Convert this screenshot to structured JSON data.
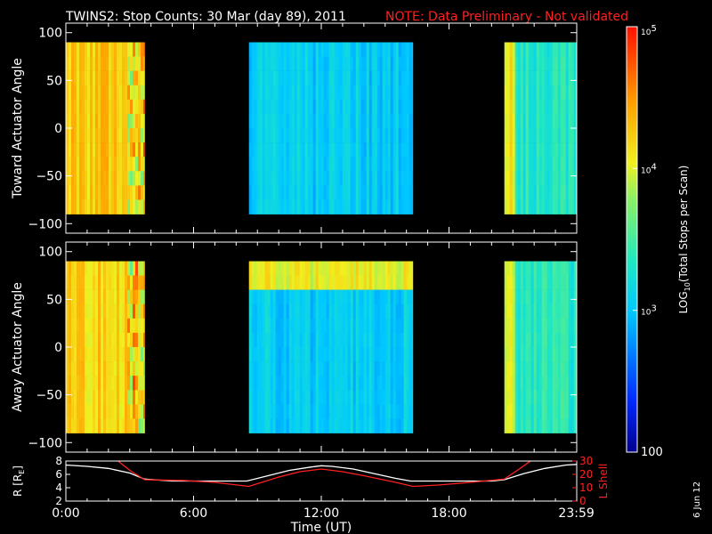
{
  "header": {
    "title": "TWINS2: Stop Counts: 30 Mar (day  89), 2011",
    "note": "NOTE: Data Preliminary - Not validated"
  },
  "footer": {
    "date_stamp": "6 Jun 12"
  },
  "colors": {
    "note": "#ff2020",
    "orbit_r": "#ffffff",
    "orbit_l": "#ff2020",
    "frame": "#ffffff",
    "background": "#000000"
  },
  "chart_data": [
    {
      "type": "heatmap",
      "ylabel": "Toward Actuator Angle",
      "ylim": [
        -110,
        110
      ],
      "yticks": [
        100,
        50,
        0,
        -50,
        -100
      ],
      "xlim": [
        0,
        24
      ],
      "data_extent": {
        "angle": [
          -90,
          90
        ]
      },
      "intervals": [
        {
          "start": 0.0,
          "end": 3.7,
          "level": 4.25
        },
        {
          "start": 8.6,
          "end": 16.3,
          "level": 3.05
        },
        {
          "start": 20.6,
          "end": 24.0,
          "level": 3.35
        }
      ]
    },
    {
      "type": "heatmap",
      "ylabel": "Away Actuator Angle",
      "ylim": [
        -110,
        110
      ],
      "yticks": [
        100,
        50,
        0,
        -50,
        -100
      ],
      "xlim": [
        0,
        24
      ],
      "data_extent": {
        "angle": [
          -90,
          90
        ]
      },
      "intervals": [
        {
          "start": 0.0,
          "end": 3.7,
          "level": 4.2
        },
        {
          "start": 8.6,
          "end": 16.3,
          "level": 3.05
        },
        {
          "start": 20.6,
          "end": 24.0,
          "level": 3.35
        }
      ]
    },
    {
      "type": "line",
      "xlabel": "Time (UT)",
      "xlim": [
        0,
        24
      ],
      "xtick_values": [
        0,
        6,
        12,
        18,
        23.983
      ],
      "xtick_labels": [
        "0:00",
        "6:00",
        "12:00",
        "18:00",
        "23:59"
      ],
      "ylabel_left": "R [R",
      "ylabel_left_sub": "E",
      "ylabel_left_end": "]",
      "ylim_left": [
        2,
        8
      ],
      "yticks_left": [
        2,
        4,
        6,
        8
      ],
      "ylabel_right": "L Shell",
      "ylim_right": [
        0,
        30
      ],
      "yticks_right": [
        0,
        10,
        20,
        30
      ],
      "series": [
        {
          "axis": "left",
          "x": [
            0,
            1,
            2,
            3,
            3.7,
            5,
            6,
            7,
            8.5,
            9.5,
            10.5,
            11.5,
            12,
            12.5,
            13.5,
            14.5,
            15.5,
            16.2,
            17,
            18,
            19,
            20,
            20.6,
            21.5,
            22.5,
            23.5,
            24
          ],
          "y": [
            7.4,
            7.2,
            6.9,
            6.2,
            5.3,
            5.0,
            5.0,
            5.0,
            5.0,
            5.8,
            6.6,
            7.1,
            7.3,
            7.2,
            6.8,
            6.1,
            5.4,
            5.0,
            5.0,
            5.0,
            5.0,
            5.0,
            5.2,
            6.1,
            6.9,
            7.4,
            7.5
          ]
        },
        {
          "axis": "right",
          "x": [
            2.3,
            3.0,
            3.7,
            5.5,
            7.0,
            8.6,
            10.0,
            11.0,
            12.0,
            13.0,
            14.0,
            15.5,
            16.3,
            17.5,
            19.0,
            20.6,
            21.3,
            22.0
          ],
          "y": [
            32,
            23,
            16,
            15.5,
            14,
            11,
            18,
            22,
            24,
            22,
            19,
            14,
            11,
            12,
            14,
            16.5,
            24,
            32
          ]
        }
      ]
    },
    {
      "type": "heatmap",
      "role": "colorbar",
      "ylabel": "LOG",
      "ylabel_sub": "10",
      "ylabel_end": "(Total Stops per Scan)",
      "range": [
        2,
        5
      ],
      "ticks": [
        {
          "value": 5,
          "label": "10",
          "exp": "5"
        },
        {
          "value": 4,
          "label": "10",
          "exp": "4"
        },
        {
          "value": 3,
          "label": "10",
          "exp": "3"
        },
        {
          "value": 2,
          "label": "100"
        }
      ]
    }
  ]
}
